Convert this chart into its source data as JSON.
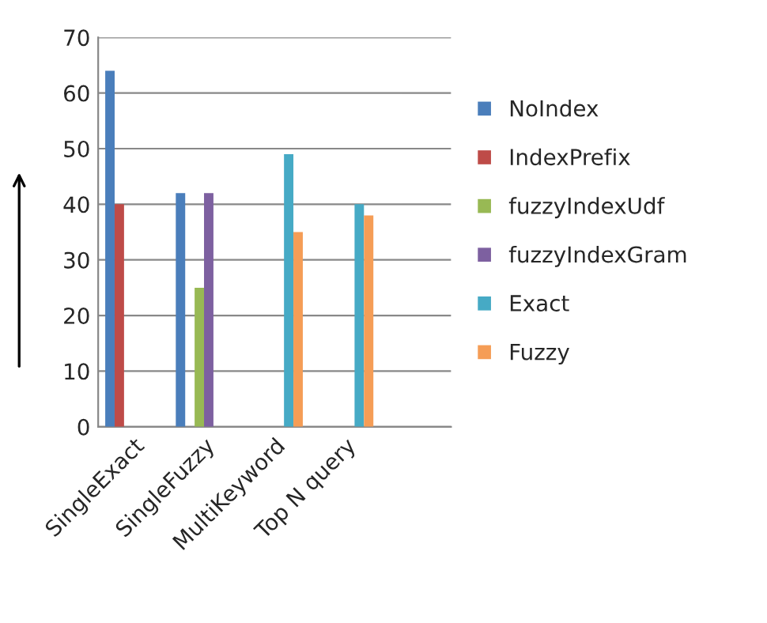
{
  "chart_data": {
    "type": "bar",
    "categories": [
      "SingleExact",
      "SingleFuzzy",
      "MultiKeyword",
      "Top N query",
      null
    ],
    "series": [
      {
        "name": "NoIndex",
        "color": "#4a7ebb",
        "values": [
          64,
          42,
          null,
          null,
          null
        ]
      },
      {
        "name": "IndexPrefix",
        "color": "#be4b48",
        "values": [
          40,
          null,
          null,
          null,
          null
        ]
      },
      {
        "name": "fuzzyIndexUdf",
        "color": "#98b954",
        "values": [
          null,
          25,
          null,
          null,
          null
        ]
      },
      {
        "name": "fuzzyIndexGram",
        "color": "#7d60a0",
        "values": [
          null,
          42,
          null,
          null,
          null
        ]
      },
      {
        "name": "Exact",
        "color": "#46aac5",
        "values": [
          null,
          null,
          49,
          40,
          null
        ]
      },
      {
        "name": "Fuzzy",
        "color": "#f59d56",
        "values": [
          null,
          null,
          35,
          38,
          null
        ]
      }
    ],
    "ylim": [
      0,
      70
    ],
    "yticks": [
      0,
      10,
      20,
      30,
      40,
      50,
      60,
      70
    ],
    "grid": "y",
    "legend": "right"
  }
}
